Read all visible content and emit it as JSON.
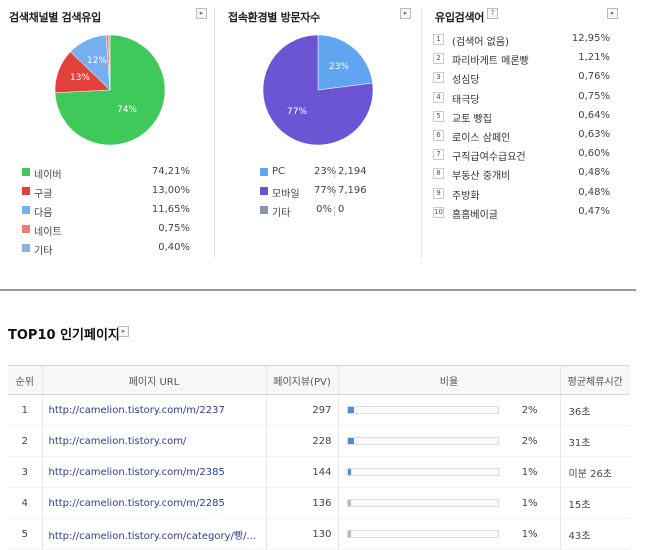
{
  "colors": {
    "naver": "#3ec95a",
    "google": "#e2413b",
    "daum": "#76aef0",
    "nate": "#f07a7a",
    "etc": "#8db3e6",
    "pc": "#5fa5ef",
    "mobile": "#6c55d5",
    "other": "#8a96a8",
    "bar_blue": "#4b8fd8",
    "bar_gray": "#b9b9b9"
  },
  "search_channel": {
    "title": "검색채널별 검색유입",
    "more_icon": "chevron-right-icon",
    "pie_labels": {
      "naver": "74%",
      "google": "13%",
      "daum": "12%"
    },
    "slices": [
      0.7421,
      0.13,
      0.1165,
      0.0075,
      0.004
    ],
    "legend": [
      {
        "label": "네이버",
        "value": "74,21%"
      },
      {
        "label": "구글",
        "value": "13,00%"
      },
      {
        "label": "다음",
        "value": "11,65%"
      },
      {
        "label": "네이트",
        "value": "0,75%"
      },
      {
        "label": "기타",
        "value": "0,40%"
      }
    ]
  },
  "device": {
    "title": "접속환경별 방문자수",
    "more_icon": "chevron-right-icon",
    "pie_labels": {
      "pc": "23%",
      "mobile": "77%"
    },
    "slices": [
      0.23,
      0.77
    ],
    "legend": [
      {
        "label": "PC",
        "pct": "23%",
        "count": "2,194"
      },
      {
        "label": "모바일",
        "pct": "77%",
        "count": "7,196"
      },
      {
        "label": "기타",
        "pct": "0%",
        "count": "0"
      }
    ]
  },
  "keywords": {
    "title": "유입검색어",
    "help_icon": "question-icon",
    "more_icon": "chevron-right-icon",
    "items": [
      {
        "rank": "1",
        "keyword": "(검색어 없음)",
        "value": "12,95%"
      },
      {
        "rank": "2",
        "keyword": "파리바게트 메론빵",
        "value": "1,21%"
      },
      {
        "rank": "3",
        "keyword": "성심당",
        "value": "0,76%"
      },
      {
        "rank": "4",
        "keyword": "태극당",
        "value": "0,75%"
      },
      {
        "rank": "5",
        "keyword": "교토 빵집",
        "value": "0,64%"
      },
      {
        "rank": "6",
        "keyword": "로이스 삼페인",
        "value": "0,63%"
      },
      {
        "rank": "7",
        "keyword": "구직급여수급요건",
        "value": "0,60%"
      },
      {
        "rank": "8",
        "keyword": "부동산 중개비",
        "value": "0,48%"
      },
      {
        "rank": "9",
        "keyword": "주방화",
        "value": "0,48%"
      },
      {
        "rank": "10",
        "keyword": "홈홈베이글",
        "value": "0,47%"
      }
    ]
  },
  "top10": {
    "title": "TOP10 인기페이지",
    "more_icon": "chevron-right-icon",
    "headers": [
      "순위",
      "페이지 URL",
      "페이지뷰(PV)",
      "비율",
      "평균체류시간"
    ],
    "rows": [
      {
        "rank": "1",
        "url": "http://camelion.tistory.com/m/2237",
        "pv": "297",
        "ratio": "2%",
        "ratio_value": 0.02,
        "bar": "blue",
        "time": "36초"
      },
      {
        "rank": "2",
        "url": "http://camelion.tistory.com/",
        "pv": "228",
        "ratio": "2%",
        "ratio_value": 0.02,
        "bar": "blue",
        "time": "31초"
      },
      {
        "rank": "3",
        "url": "http://camelion.tistory.com/m/2385",
        "pv": "144",
        "ratio": "1%",
        "ratio_value": 0.01,
        "bar": "blue",
        "time": "미분 26초"
      },
      {
        "rank": "4",
        "url": "http://camelion.tistory.com/m/2285",
        "pv": "136",
        "ratio": "1%",
        "ratio_value": 0.01,
        "bar": "gray",
        "time": "15초"
      },
      {
        "rank": "5",
        "url": "http://camelion.tistory.com/category/빵/…",
        "pv": "130",
        "ratio": "1%",
        "ratio_value": 0.01,
        "bar": "gray",
        "time": "43초"
      }
    ]
  }
}
